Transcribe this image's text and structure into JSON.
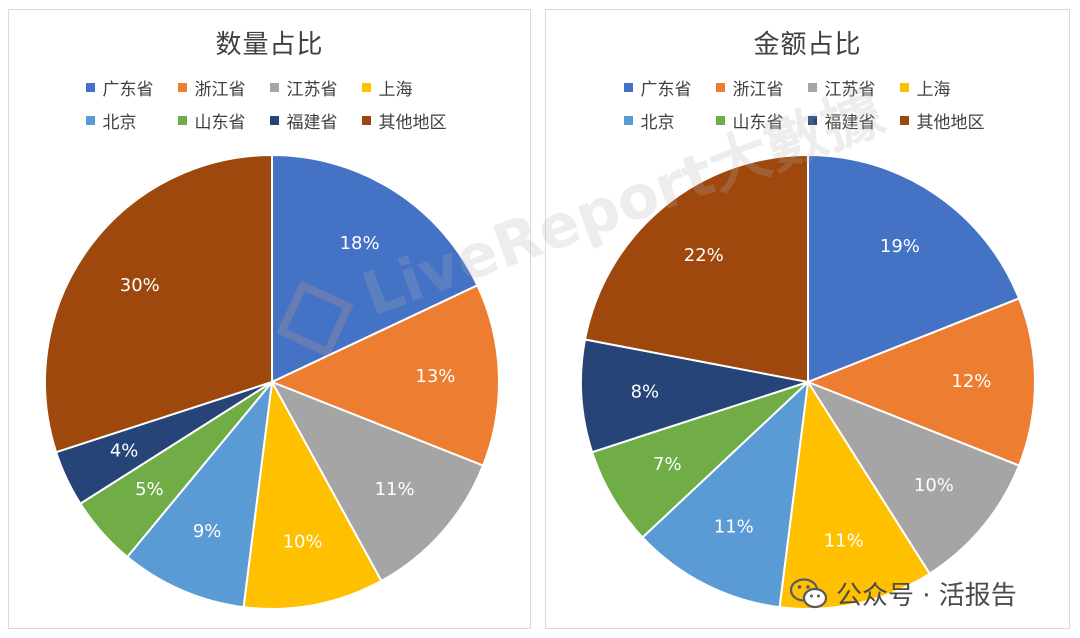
{
  "chart_data": [
    {
      "type": "pie",
      "title": "数量占比",
      "categories": [
        "广东省",
        "浙江省",
        "江苏省",
        "上海",
        "北京",
        "山东省",
        "福建省",
        "其他地区"
      ],
      "values": [
        18,
        13,
        11,
        10,
        9,
        5,
        4,
        30
      ],
      "labels": [
        "18%",
        "13%",
        "11%",
        "10%",
        "9%",
        "5%",
        "4%",
        "30%"
      ],
      "colors": [
        "#4472C4",
        "#ED7D31",
        "#A5A5A5",
        "#FFC000",
        "#5B9BD5",
        "#70AD47",
        "#264478",
        "#9E480E"
      ],
      "legend": "top"
    },
    {
      "type": "pie",
      "title": "金额占比",
      "categories": [
        "广东省",
        "浙江省",
        "江苏省",
        "上海",
        "北京",
        "山东省",
        "福建省",
        "其他地区"
      ],
      "values": [
        19,
        12,
        10,
        11,
        11,
        7,
        8,
        22
      ],
      "labels": [
        "19%",
        "12%",
        "10%",
        "11%",
        "11%",
        "7%",
        "8%",
        "22%"
      ],
      "colors": [
        "#4472C4",
        "#ED7D31",
        "#A5A5A5",
        "#FFC000",
        "#5B9BD5",
        "#70AD47",
        "#264478",
        "#9E480E"
      ],
      "legend": "top"
    }
  ],
  "watermark": "LiveReport大數據",
  "footer": {
    "text": "公众号 · 活报告",
    "icon": "wechat-icon"
  }
}
